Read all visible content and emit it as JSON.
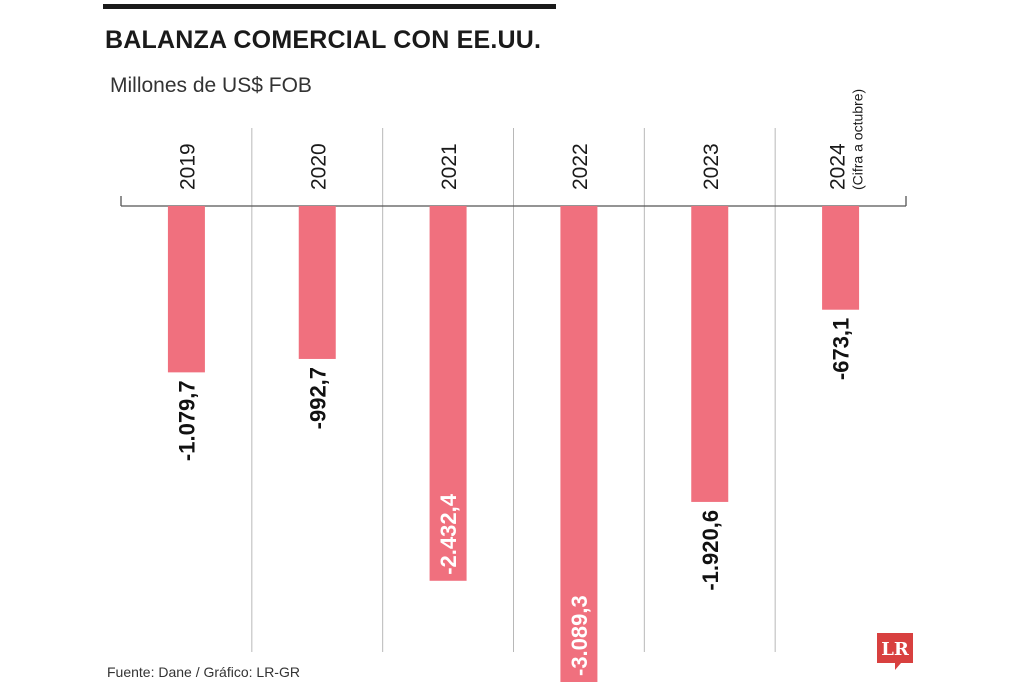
{
  "header": {
    "title": "BALANZA COMERCIAL CON EE.UU.",
    "subtitle": "Millones de US$ FOB"
  },
  "footer": {
    "source": "Fuente: Dane  / Gráfico: LR-GR"
  },
  "logo": {
    "text": "LR",
    "color": "#d8403f"
  },
  "chart_data": {
    "type": "bar",
    "orientation": "vertical-downward",
    "categories": [
      "2019",
      "2020",
      "2021",
      "2022",
      "2023",
      "2024"
    ],
    "category_notes": [
      "",
      "",
      "",
      "",
      "",
      "(Cifra a octubre)"
    ],
    "values": [
      -1079.7,
      -992.7,
      -2432.4,
      -3089.3,
      -1920.6,
      -673.1
    ],
    "value_labels": [
      "-1.079,7",
      "-992,7",
      "-2.432,4",
      "-3.089,3",
      "-1.920,6",
      "-673,1"
    ],
    "label_inside": [
      false,
      false,
      true,
      true,
      false,
      false
    ],
    "ylim": [
      -3089.3,
      0
    ],
    "bar_color": "#f0707e",
    "grid": "vertical-separators"
  }
}
